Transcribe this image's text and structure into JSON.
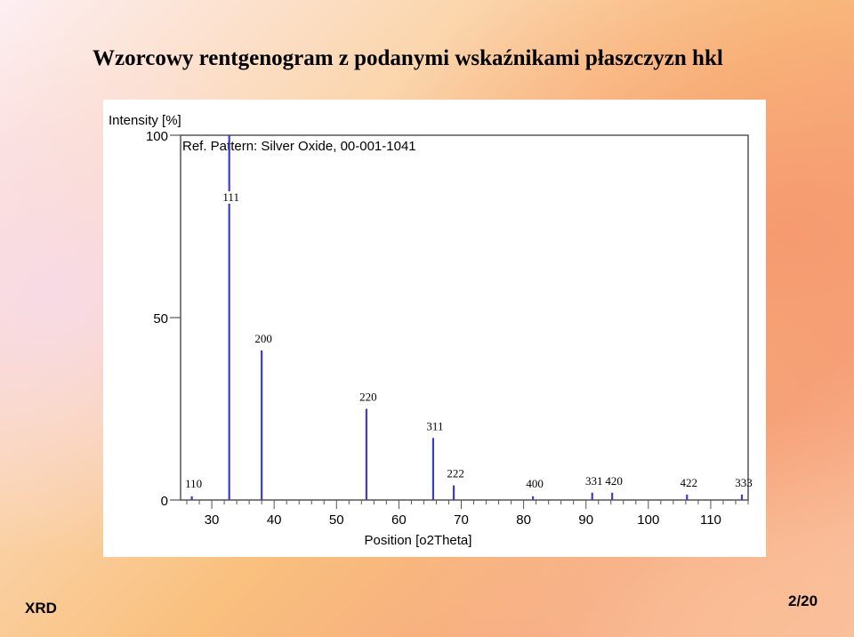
{
  "slide": {
    "title": "Wzorcowy rentgenogram z podanymi wskaźnikami płaszczyzn hkl",
    "footer_left": "XRD",
    "page_number": "2/20"
  },
  "chart_data": {
    "type": "bar",
    "plot_label": "Ref. Pattern: Silver Oxide, 00-001-1041",
    "xlabel": "Position [o2Theta]",
    "ylabel": "Intensity [%]",
    "xlim": [
      25,
      116
    ],
    "ylim": [
      0,
      100
    ],
    "xticks": [
      30,
      40,
      50,
      60,
      70,
      80,
      90,
      100,
      110
    ],
    "yticks": [
      0,
      50,
      100
    ],
    "color": "#3b3bd6",
    "grid": false,
    "peaks": [
      {
        "hkl": "110",
        "x": 26.8,
        "y": 1
      },
      {
        "hkl": "111",
        "x": 32.8,
        "y": 100
      },
      {
        "hkl": "200",
        "x": 38.0,
        "y": 41
      },
      {
        "hkl": "220",
        "x": 54.8,
        "y": 25
      },
      {
        "hkl": "311",
        "x": 65.5,
        "y": 17
      },
      {
        "hkl": "222",
        "x": 68.8,
        "y": 4
      },
      {
        "hkl": "400",
        "x": 81.5,
        "y": 1
      },
      {
        "hkl": "331",
        "x": 91.0,
        "y": 2
      },
      {
        "hkl": "420",
        "x": 94.2,
        "y": 2
      },
      {
        "hkl": "422",
        "x": 106.2,
        "y": 1.5
      },
      {
        "hkl": "333",
        "x": 115.0,
        "y": 1.5
      }
    ]
  }
}
